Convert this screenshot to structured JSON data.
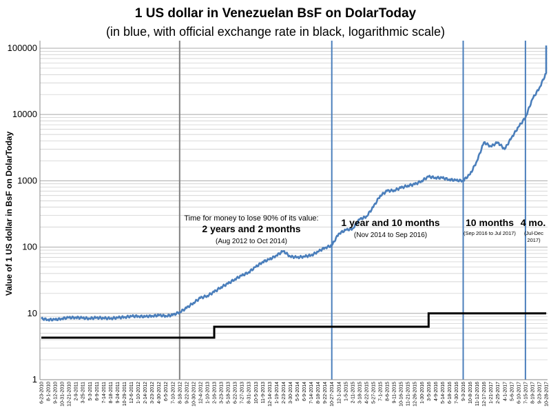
{
  "chart_data": {
    "type": "line",
    "title": "1 US dollar in Venezuelan BsF on DolarToday",
    "subtitle": "(in blue, with official exchange rate in black, logarithmic scale)",
    "ylabel": "Value of 1 US dollar in BsF on DolarToday",
    "xlabel": "",
    "yscale": "log",
    "ylim": [
      1,
      130000
    ],
    "y_ticks": [
      "1",
      "10",
      "100",
      "1000",
      "10000",
      "100000"
    ],
    "x_ticks": [
      "6-23-2010",
      "8-1-2010",
      "9-12-2010",
      "10-31-2010",
      "12-21-2010",
      "2-9-2011",
      "3-25-2011",
      "5-3-2011",
      "6-9-2011",
      "7-14-2011",
      "8-18-2011",
      "9-24-2011",
      "10-29-2011",
      "12-6-2011",
      "1-10-2012",
      "2-14-2012",
      "3-23-2012",
      "4-30-2012",
      "6-5-2012",
      "7-10-2012",
      "8-18-2012",
      "9-22-2012",
      "10-30-2012",
      "12-4-2012",
      "1-10-2013",
      "2-16-2013",
      "3-23-2013",
      "5-18-2013",
      "6-22-2013",
      "7-27-2013",
      "8-31-2013",
      "10-5-2013",
      "11-9-2013",
      "12-14-2013",
      "1-19-2014",
      "2-23-2014",
      "3-30-2014",
      "5-5-2014",
      "6-9-2014",
      "7-14-2014",
      "8-18-2014",
      "9-22-2014",
      "10-27-2014",
      "12-1-2014",
      "1-5-2015",
      "2-11-2015",
      "3-18-2015",
      "4-22-2015",
      "5-27-2015",
      "7-1-2015",
      "8-6-2015",
      "9-11-2015",
      "10-16-2015",
      "11-21-2015",
      "12-26-2015",
      "1-30-2016",
      "3-5-2016",
      "4-9-2016",
      "5-14-2016",
      "6-18-2016",
      "7-30-2016",
      "9-3-2016",
      "10-8-2016",
      "11-12-2016",
      "12-17-2016",
      "1-21-2017",
      "2-25-2017",
      "4-1-2017",
      "5-6-2017",
      "6-10-2017",
      "7-15-2017",
      "8-19-2017",
      "9-23-2017",
      "10-28-2017"
    ],
    "series": [],
    "dolartoday_rate": [
      {
        "x": "6-23-2010",
        "y": 8.3
      },
      {
        "x": "8-1-2010",
        "y": 8.1
      },
      {
        "x": "9-12-2010",
        "y": 8.0
      },
      {
        "x": "10-31-2010",
        "y": 8.4
      },
      {
        "x": "12-21-2010",
        "y": 8.6
      },
      {
        "x": "2-9-2011",
        "y": 8.7
      },
      {
        "x": "3-25-2011",
        "y": 8.5
      },
      {
        "x": "5-3-2011",
        "y": 8.4
      },
      {
        "x": "6-9-2011",
        "y": 8.6
      },
      {
        "x": "7-14-2011",
        "y": 8.5
      },
      {
        "x": "8-18-2011",
        "y": 8.4
      },
      {
        "x": "9-24-2011",
        "y": 8.6
      },
      {
        "x": "10-29-2011",
        "y": 8.8
      },
      {
        "x": "12-6-2011",
        "y": 9.0
      },
      {
        "x": "1-10-2012",
        "y": 9.1
      },
      {
        "x": "2-14-2012",
        "y": 8.9
      },
      {
        "x": "3-23-2012",
        "y": 9.2
      },
      {
        "x": "4-30-2012",
        "y": 9.3
      },
      {
        "x": "6-5-2012",
        "y": 9.2
      },
      {
        "x": "7-10-2012",
        "y": 9.4
      },
      {
        "x": "8-18-2012",
        "y": 10.5
      },
      {
        "x": "9-22-2012",
        "y": 12.0
      },
      {
        "x": "10-30-2012",
        "y": 14.5
      },
      {
        "x": "12-4-2012",
        "y": 17.0
      },
      {
        "x": "1-10-2013",
        "y": 18.5
      },
      {
        "x": "2-16-2013",
        "y": 21.0
      },
      {
        "x": "3-23-2013",
        "y": 25.0
      },
      {
        "x": "5-18-2013",
        "y": 28.0
      },
      {
        "x": "6-22-2013",
        "y": 33.0
      },
      {
        "x": "7-27-2013",
        "y": 37.0
      },
      {
        "x": "8-31-2013",
        "y": 42.0
      },
      {
        "x": "10-5-2013",
        "y": 50.0
      },
      {
        "x": "11-9-2013",
        "y": 60.0
      },
      {
        "x": "12-14-2013",
        "y": 65.0
      },
      {
        "x": "1-19-2014",
        "y": 75.0
      },
      {
        "x": "2-23-2014",
        "y": 87.0
      },
      {
        "x": "3-30-2014",
        "y": 72.0
      },
      {
        "x": "5-5-2014",
        "y": 70.0
      },
      {
        "x": "6-9-2014",
        "y": 72.0
      },
      {
        "x": "7-14-2014",
        "y": 75.0
      },
      {
        "x": "8-18-2014",
        "y": 85.0
      },
      {
        "x": "9-22-2014",
        "y": 98.0
      },
      {
        "x": "10-27-2014",
        "y": 105.0
      },
      {
        "x": "12-1-2014",
        "y": 160.0
      },
      {
        "x": "1-5-2015",
        "y": 180.0
      },
      {
        "x": "2-11-2015",
        "y": 190.0
      },
      {
        "x": "3-18-2015",
        "y": 260.0
      },
      {
        "x": "4-22-2015",
        "y": 290.0
      },
      {
        "x": "5-27-2015",
        "y": 400.0
      },
      {
        "x": "7-1-2015",
        "y": 600.0
      },
      {
        "x": "8-6-2015",
        "y": 700.0
      },
      {
        "x": "9-11-2015",
        "y": 720.0
      },
      {
        "x": "10-16-2015",
        "y": 780.0
      },
      {
        "x": "11-21-2015",
        "y": 850.0
      },
      {
        "x": "12-26-2015",
        "y": 880.0
      },
      {
        "x": "1-30-2016",
        "y": 1000.0
      },
      {
        "x": "3-5-2016",
        "y": 1150.0
      },
      {
        "x": "4-9-2016",
        "y": 1120.0
      },
      {
        "x": "5-14-2016",
        "y": 1100.0
      },
      {
        "x": "6-18-2016",
        "y": 1050.0
      },
      {
        "x": "7-30-2016",
        "y": 1010.0
      },
      {
        "x": "9-3-2016",
        "y": 1010.0
      },
      {
        "x": "10-8-2016",
        "y": 1250.0
      },
      {
        "x": "11-12-2016",
        "y": 2000.0
      },
      {
        "x": "12-17-2016",
        "y": 3800.0
      },
      {
        "x": "1-21-2017",
        "y": 3300.0
      },
      {
        "x": "2-25-2017",
        "y": 3800.0
      },
      {
        "x": "4-1-2017",
        "y": 3000.0
      },
      {
        "x": "5-6-2017",
        "y": 4500.0
      },
      {
        "x": "6-10-2017",
        "y": 6500.0
      },
      {
        "x": "7-15-2017",
        "y": 9000.0
      },
      {
        "x": "8-19-2017",
        "y": 17000.0
      },
      {
        "x": "9-23-2017",
        "y": 25000.0
      },
      {
        "x": "10-28-2017",
        "y": 42000.0
      }
    ],
    "dolartoday_end": 110000,
    "official_rate_steps": [
      {
        "from": "6-23-2010",
        "to": "2-16-2013",
        "y": 4.3
      },
      {
        "from": "2-16-2013",
        "to": "3-5-2016",
        "y": 6.3
      },
      {
        "from": "3-5-2016",
        "to": "10-28-2017",
        "y": 10.0
      }
    ],
    "vertical_markers": [
      {
        "x": "8-18-2012",
        "color": "#808080"
      },
      {
        "x": "10-27-2014",
        "color": "#4a7ebb"
      },
      {
        "x": "9-3-2016",
        "color": "#4a7ebb"
      },
      {
        "x": "7-15-2017",
        "color": "#4a7ebb"
      }
    ],
    "colors": {
      "dolartoday": "#4a7ebb",
      "official": "#000000",
      "grid": "#c8c8c8"
    },
    "grid": true,
    "annotations": {
      "intro": "Time for money to lose 90% of its value:",
      "p1_duration": "2 years and 2 months",
      "p1_range": "(Aug 2012 to Oct 2014)",
      "p2_duration": "1 year and 10 months",
      "p2_range": "(Nov 2014  to Sep 2016)",
      "p3_duration": "10 months",
      "p3_range": "(Sep 2016 to Jul 2017)",
      "p4_duration": "4 mo.",
      "p4_range_line1": "(Jul-Dec",
      "p4_range_line2": "2017)"
    }
  }
}
